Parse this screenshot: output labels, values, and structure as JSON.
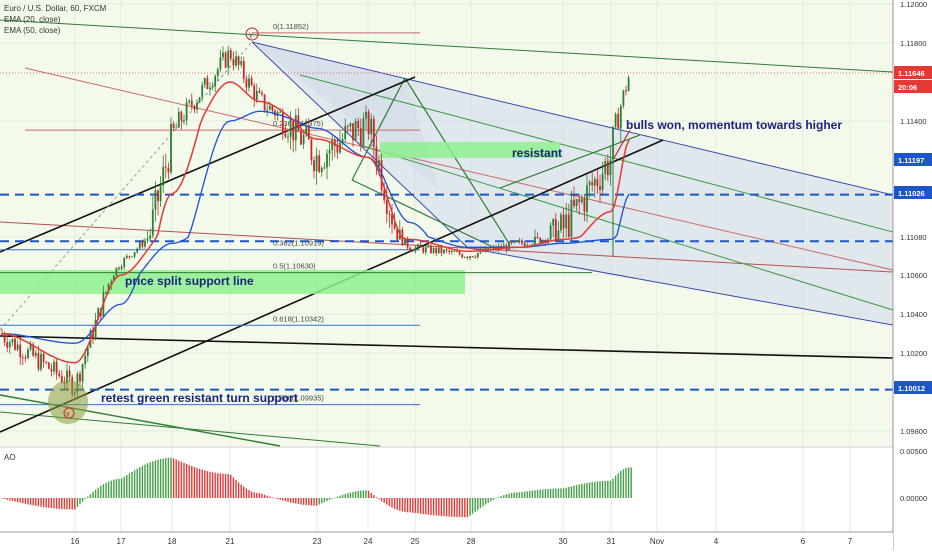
{
  "legend": {
    "symbol": "Euro / U.S. Dollar, 60, FXCM",
    "ema20": "EMA (20, close)",
    "ema50": "EMA (50, close)"
  },
  "indicator_label": "AO",
  "annotations": {
    "bulls": "bulls won, momentum towards higher",
    "resistant": "resistant",
    "price_split": "price split support line",
    "retest": "retest green resistant turn support",
    "top_marker": "y",
    "bottom_marker": "x"
  },
  "fib": [
    {
      "label": "0(1.11852)",
      "price": 1.11852
    },
    {
      "label": "0.236(1.11375)",
      "price": 1.11375
    },
    {
      "label": "0.382(1.10919)",
      "price": 1.10919
    },
    {
      "label": "0.5(1.10630)",
      "price": 1.1063
    },
    {
      "label": "0.618(1.10342)",
      "price": 1.10342
    },
    {
      "label": "0.786(1.09935)",
      "price": 1.09935
    }
  ],
  "price_badges": [
    {
      "label": "1.11646",
      "price": 1.11646,
      "color": "#e53935"
    },
    {
      "label": "20:06",
      "price": 1.1156,
      "color": "#e53935"
    },
    {
      "label": "1.11197",
      "price": 1.11197,
      "color": "#1e56c8"
    },
    {
      "label": "1.11026",
      "price": 1.11026,
      "color": "#1e56c8"
    },
    {
      "label": "1.10012",
      "price": 1.10012,
      "color": "#1e56c8"
    }
  ],
  "ao_axis": [
    "0.00500",
    "0.00000"
  ],
  "chart_data": {
    "type": "line",
    "title": "Euro / U.S. Dollar, 60, FXCM",
    "x_ticks": [
      "16",
      "17",
      "18",
      "21",
      "23",
      "24",
      "25",
      "28",
      "30",
      "31",
      "Nov",
      "4",
      "6",
      "7"
    ],
    "y_ticks": [
      "1.12000",
      "1.11800",
      "1.11400",
      "1.11080",
      "1.10600",
      "1.10400",
      "1.10200",
      "1.09800"
    ],
    "ylim": [
      1.0965,
      1.1205
    ],
    "horizontal_levels": [
      1.11197,
      1.11026,
      1.10012
    ],
    "series": [
      {
        "name": "Euro / U.S. Dollar",
        "x": [
          "15 Oct",
          "16 Oct",
          "17 Oct",
          "18 Oct",
          "21 Oct",
          "22 Oct",
          "23 Oct",
          "24 Oct",
          "25 Oct",
          "28 Oct",
          "29 Oct",
          "30 Oct",
          "31 Oct",
          "31 Oct late"
        ],
        "values": [
          1.103,
          1.1003,
          1.1075,
          1.1135,
          1.1175,
          1.115,
          1.113,
          1.114,
          1.1095,
          1.1085,
          1.11,
          1.111,
          1.113,
          1.1165
        ]
      },
      {
        "name": "EMA (20, close)",
        "values": [
          1.103,
          1.1015,
          1.106,
          1.112,
          1.116,
          1.115,
          1.1135,
          1.113,
          1.1105,
          1.109,
          1.1095,
          1.1105,
          1.1115,
          1.1135
        ]
      },
      {
        "name": "EMA (50, close)",
        "values": [
          1.103,
          1.1025,
          1.1045,
          1.11,
          1.114,
          1.1145,
          1.1138,
          1.113,
          1.1112,
          1.1095,
          1.1095,
          1.11,
          1.1105,
          1.112
        ]
      },
      {
        "name": "AO",
        "values": [
          0.0,
          -0.0012,
          0.002,
          0.0042,
          0.0025,
          0.0005,
          -0.0008,
          0.0008,
          -0.0015,
          -0.002,
          0.0006,
          0.001,
          0.0018,
          0.0032
        ]
      }
    ],
    "colors": {
      "price": "#1b5e20",
      "ema20": "#e53935",
      "ema50": "#1e4fd6",
      "levels": "#1e56c8",
      "zone": "#8ef08e"
    }
  }
}
